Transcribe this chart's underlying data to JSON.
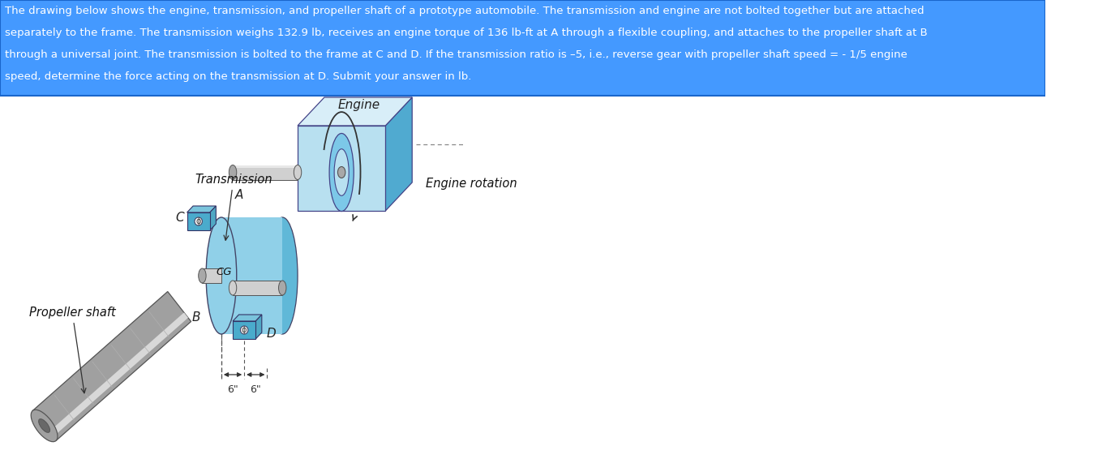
{
  "background_color": "#ffffff",
  "header_bg_color": "#4499ff",
  "header_text_color": "#ffffff",
  "header_line1": "The drawing below shows the engine, transmission, and propeller shaft of a prototype automobile. The transmission and engine are not bolted together but are attached",
  "header_line2": "separately to the frame. The transmission weighs 132.9 lb, receives an engine torque of 136 lb-ft at A through a flexible coupling, and attaches to the propeller shaft at B",
  "header_line3": "through a universal joint. The transmission is bolted to the frame at C and D. If the transmission ratio is –5, i.e., reverse gear with propeller shaft speed = - 1/5 engine",
  "header_line4": "speed, determine the force acting on the transmission at D. Submit your answer in lb.",
  "engine_light": "#b8e0f0",
  "engine_mid": "#7cc8e8",
  "engine_dark": "#50aad0",
  "engine_top": "#d8eef8",
  "trans_light": "#90d0e8",
  "trans_mid": "#60b8d8",
  "trans_dark": "#3898b8",
  "mount_color": "#4aabcc",
  "shaft_light": "#d0d0d0",
  "shaft_mid": "#a8a8a8",
  "shaft_dark": "#787878",
  "prop_light": "#c8c8c8",
  "prop_mid": "#a0a0a0",
  "prop_dark": "#686868"
}
